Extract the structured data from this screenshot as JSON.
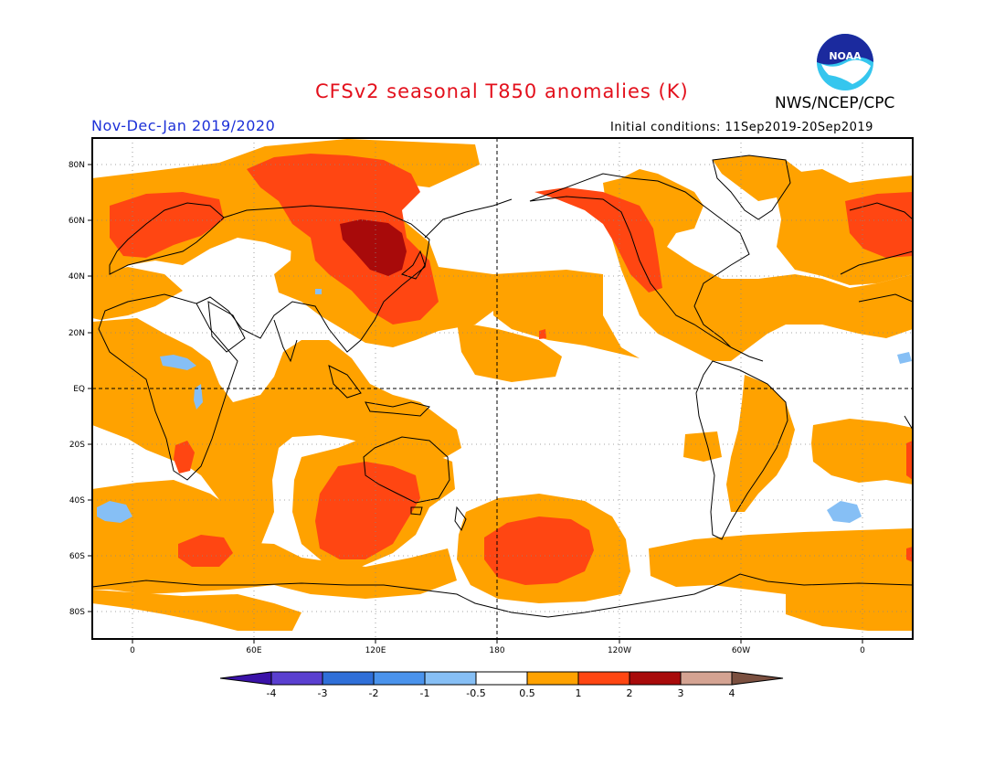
{
  "header": {
    "title": "CFSv2 seasonal T850 anomalies (K)",
    "period": "Nov-Dec-Jan 2019/2020",
    "initial_conditions": "Initial conditions: 11Sep2019-20Sep2019",
    "agency": "NWS/NCEP/CPC",
    "logo_text": "NOAA"
  },
  "axes": {
    "lat_labels": [
      "80N",
      "60N",
      "40N",
      "20N",
      "EQ",
      "20S",
      "40S",
      "60S",
      "80S"
    ],
    "lon_labels": [
      "0",
      "60E",
      "120E",
      "180",
      "120W",
      "60W",
      "0"
    ]
  },
  "colorbar": {
    "labels": [
      "-4",
      "-3",
      "-2",
      "-1",
      "-0.5",
      "0.5",
      "1",
      "2",
      "3",
      "4"
    ],
    "colors": [
      "#3a12a8",
      "#5a3fd0",
      "#2f6fd8",
      "#4a93ec",
      "#86bff5",
      "#ffffff",
      "#ffa200",
      "#ff4612",
      "#a80a0a",
      "#d4a392",
      "#7b5040"
    ]
  },
  "palette": {
    "ocean_bg": "#ffffff",
    "anom_0_5_1": "#ffa200",
    "anom_1_2": "#ff4612",
    "anom_2_3": "#a80a0a",
    "anom_neg": "#86bff5"
  }
}
